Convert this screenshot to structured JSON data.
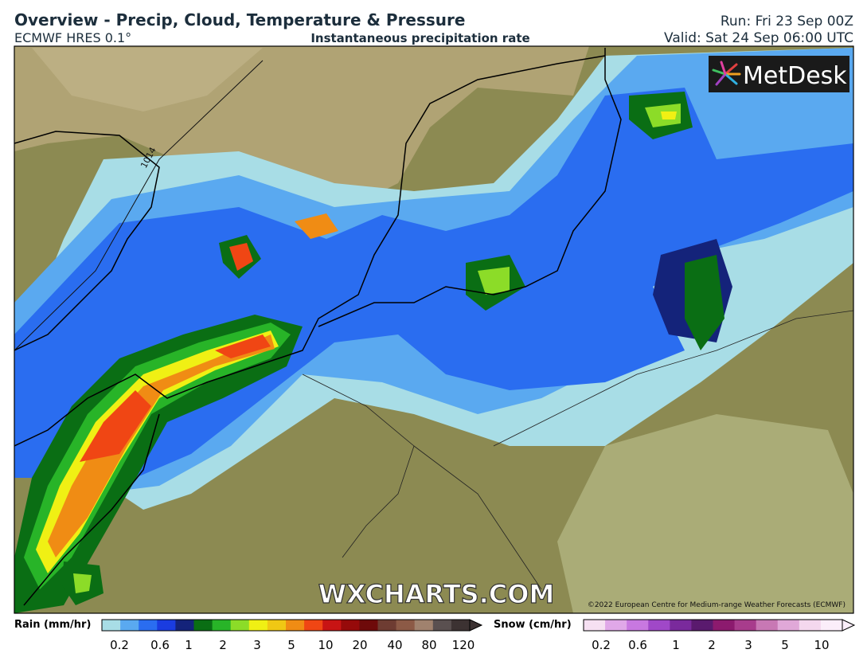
{
  "header": {
    "title": "Overview - Precip, Cloud, Temperature & Pressure",
    "model": "ECMWF HRES 0.1°",
    "field": "Instantaneous precipitation rate",
    "run": "Run: Fri 23 Sep 00Z",
    "valid": "Valid: Sat 24 Sep 06:00 UTC"
  },
  "map": {
    "logo": "MetDesk",
    "watermark": "WXCHARTS.COM",
    "copyright": "©2022 European Centre for Medium-range Weather Forecasts (ECMWF)",
    "isobar_label": "1014"
  },
  "legend": {
    "rain": {
      "title": "Rain (mm/hr)",
      "colors": [
        "#a8dde6",
        "#5aa9f0",
        "#2a6df0",
        "#1a3ce0",
        "#14237a",
        "#0a6e14",
        "#28b428",
        "#8cdc28",
        "#f0f014",
        "#f0c814",
        "#f08c14",
        "#f04614",
        "#c81414",
        "#960a0a",
        "#6e0a0a",
        "#6e3c32",
        "#8c5a46",
        "#a0826e",
        "#5a5050",
        "#3c3232"
      ],
      "ticks": [
        0.2,
        0.6,
        1,
        2,
        3,
        5,
        10,
        20,
        40,
        80,
        120
      ]
    },
    "snow": {
      "title": "Snow (cm/hr)",
      "colors": [
        "#f6e0f2",
        "#e0a8e8",
        "#c878e0",
        "#a048c8",
        "#7a2a9c",
        "#5a1a6e",
        "#8c1a6e",
        "#a83c8c",
        "#c878b4",
        "#e0a8d8",
        "#f4d8ee",
        "#fbeefa"
      ],
      "ticks": [
        0.2,
        0.6,
        1,
        2,
        3,
        5,
        10
      ]
    }
  }
}
